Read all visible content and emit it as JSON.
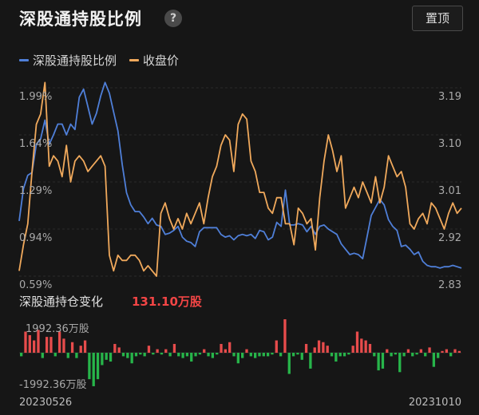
{
  "header": {
    "title": "深股通持股比例",
    "help_label": "?",
    "top_button_label": "置顶"
  },
  "legend": [
    {
      "label": "深股通持股比例",
      "color": "#4f7fd8"
    },
    {
      "label": "收盘价",
      "color": "#f0a95c"
    }
  ],
  "sub_section": {
    "title": "深股通持仓变化",
    "value": "131.10万股",
    "value_color": "#f24545"
  },
  "colors": {
    "up": "#e74c4c",
    "down": "#27b54a",
    "background": "#161616"
  },
  "chart_data": [
    {
      "type": "line",
      "title": "深股通持股比例",
      "y_left_ticks": [
        "1.99%",
        "1.64%",
        "1.29%",
        "0.94%",
        "0.59%"
      ],
      "y_right_ticks": [
        "3.19",
        "3.10",
        "3.01",
        "2.92",
        "2.83"
      ],
      "ylim_left": [
        0.59,
        1.99
      ],
      "ylim_right": [
        2.83,
        3.19
      ],
      "series": [
        {
          "name": "深股通持股比例",
          "axis": "left",
          "values": [
            1.0,
            1.24,
            1.34,
            1.36,
            1.57,
            1.61,
            1.75,
            1.57,
            1.64,
            1.72,
            1.72,
            1.64,
            1.72,
            1.68,
            1.92,
            1.98,
            1.85,
            1.72,
            1.8,
            1.93,
            2.03,
            1.95,
            1.81,
            1.67,
            1.42,
            1.21,
            1.12,
            1.07,
            1.07,
            1.03,
            0.98,
            1.02,
            0.97,
            0.96,
            0.9,
            0.91,
            0.93,
            0.96,
            0.88,
            0.85,
            0.84,
            0.81,
            0.92,
            0.95,
            0.95,
            0.95,
            0.95,
            0.9,
            0.88,
            0.89,
            0.86,
            0.89,
            0.9,
            0.89,
            0.9,
            0.87,
            0.93,
            0.92,
            0.86,
            0.88,
            0.99,
            0.96,
            1.23,
            0.97,
            0.97,
            0.98,
            0.97,
            0.92,
            0.96,
            0.9,
            0.96,
            0.97,
            0.94,
            0.92,
            0.9,
            0.83,
            0.79,
            0.75,
            0.76,
            0.75,
            0.72,
            0.88,
            1.04,
            1.1,
            1.16,
            1.12,
            1.01,
            0.96,
            0.93,
            0.81,
            0.82,
            0.79,
            0.75,
            0.77,
            0.7,
            0.67,
            0.66,
            0.66,
            0.65,
            0.66,
            0.66,
            0.67,
            0.66,
            0.65
          ]
        },
        {
          "name": "收盘价",
          "axis": "right",
          "values": [
            2.84,
            2.89,
            2.93,
            3.03,
            3.12,
            3.14,
            3.2,
            3.04,
            3.06,
            3.05,
            3.02,
            3.08,
            3.01,
            3.05,
            3.06,
            3.05,
            3.03,
            3.04,
            3.05,
            3.06,
            3.04,
            2.87,
            2.84,
            2.87,
            2.86,
            2.86,
            2.87,
            2.87,
            2.86,
            2.84,
            2.85,
            2.84,
            2.83,
            2.95,
            2.97,
            2.94,
            2.92,
            2.94,
            2.92,
            2.95,
            2.93,
            2.95,
            2.97,
            2.93,
            2.98,
            3.02,
            3.04,
            3.08,
            3.1,
            3.09,
            3.03,
            3.12,
            3.14,
            3.13,
            3.05,
            3.03,
            2.99,
            2.99,
            2.96,
            2.95,
            2.98,
            2.98,
            2.93,
            2.93,
            2.89,
            2.96,
            2.95,
            2.93,
            2.94,
            2.88,
            2.98,
            3.05,
            3.1,
            3.07,
            3.03,
            3.06,
            2.96,
            2.98,
            3.0,
            2.98,
            3.01,
            2.99,
            2.97,
            3.02,
            2.97,
            3.0,
            3.06,
            3.04,
            3.02,
            3.03,
            3.0,
            2.93,
            2.92,
            2.94,
            2.95,
            2.93,
            2.97,
            2.96,
            2.94,
            2.92,
            2.95,
            2.97,
            2.95,
            2.96
          ]
        }
      ]
    },
    {
      "type": "bar",
      "title": "深股通持仓变化",
      "y_ticks": [
        "1992.36万股",
        "-1992.36万股"
      ],
      "ylim": [
        -1992.36,
        1992.36
      ],
      "x_start": "20230526",
      "x_end": "20231010",
      "values": [
        -200,
        1200,
        1000,
        700,
        1300,
        -300,
        900,
        900,
        -200,
        1200,
        800,
        -300,
        600,
        -300,
        400,
        700,
        -1500,
        -1900,
        -1500,
        -700,
        -400,
        -500,
        500,
        300,
        -200,
        -300,
        -600,
        -200,
        -100,
        -200,
        400,
        -100,
        200,
        -100,
        200,
        -200,
        500,
        -200,
        -300,
        -200,
        -500,
        -200,
        -100,
        200,
        -200,
        -300,
        -100,
        500,
        200,
        600,
        -200,
        -600,
        -300,
        200,
        -200,
        -300,
        -200,
        -200,
        -200,
        -100,
        700,
        -200,
        1900,
        -1200,
        -200,
        -100,
        -400,
        500,
        -900,
        300,
        700,
        600,
        400,
        -200,
        -500,
        -200,
        -200,
        -100,
        400,
        1200,
        800,
        700,
        500,
        -200,
        -1000,
        -900,
        200,
        -200,
        -100,
        -1100,
        -200,
        200,
        -200,
        -100,
        200,
        -200,
        300,
        -800,
        -300,
        100,
        200,
        -200,
        200,
        100
      ]
    }
  ]
}
